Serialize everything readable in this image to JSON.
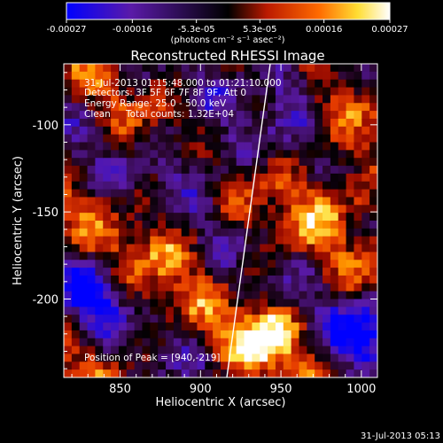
{
  "colorbar": {
    "tick_labels": [
      "-0.00027",
      "-0.00016",
      "-5.3e-05",
      "5.3e-05",
      "0.00016",
      "0.00027"
    ],
    "unit_label": "(photons cm⁻² s⁻¹ asec⁻²)",
    "range": [
      -0.00027,
      0.00027
    ],
    "colormap": [
      "#0000ff",
      "#6a0dad",
      "#000000",
      "#cc2200",
      "#ff8800",
      "#ffff66",
      "#ffffff"
    ]
  },
  "chart_data": {
    "type": "heatmap",
    "title": "Reconstructed RHESSI Image",
    "xlabel": "Heliocentric X (arcsec)",
    "ylabel": "Heliocentric Y (arcsec)",
    "xlim": [
      815,
      1010
    ],
    "ylim": [
      -245,
      -65
    ],
    "x_ticks": [
      850,
      900,
      950,
      1000
    ],
    "y_ticks": [
      -100,
      -150,
      -200
    ],
    "x_tick_labels": [
      "850",
      "900",
      "950",
      "1000"
    ],
    "y_tick_labels": [
      "-100",
      "-150",
      "-200"
    ],
    "peak": [
      940,
      -219
    ],
    "annotations": {
      "time_range": "31-Jul-2013 01:15:48.000 to 01:21:10.000",
      "detectors": "Detectors: 3F 5F 6F 7F 8F 9F, Att 0",
      "energy": "Energy Range: 25.0 - 50.0 keV",
      "method": "Clean",
      "counts": "Total counts: 1.32E+04",
      "peak_label": "Position of Peak = [940,-219]"
    }
  },
  "footer": {
    "timestamp": "31-Jul-2013 05:13"
  }
}
